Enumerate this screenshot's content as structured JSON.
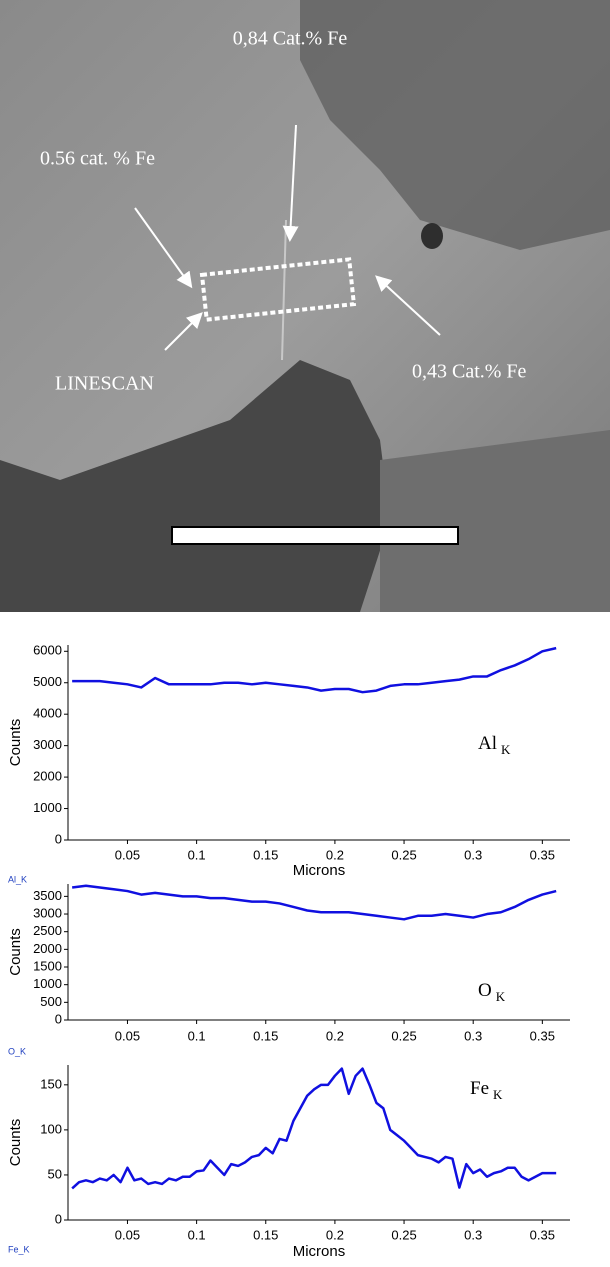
{
  "image": {
    "labels": [
      "0,84 Cat.% Fe",
      "0.56 cat. % Fe",
      "LINESCAN",
      "0,43 Cat.% Fe"
    ]
  },
  "chart_data": [
    {
      "type": "line",
      "y_label": "Counts",
      "x_label": "Microns",
      "annotation": {
        "text": "Al",
        "subscript": "K"
      },
      "source_label": "Al_K",
      "color": "#1010e0",
      "x": [
        0.01,
        0.02,
        0.03,
        0.04,
        0.05,
        0.06,
        0.07,
        0.08,
        0.09,
        0.1,
        0.11,
        0.12,
        0.13,
        0.14,
        0.15,
        0.16,
        0.17,
        0.18,
        0.19,
        0.2,
        0.21,
        0.22,
        0.23,
        0.24,
        0.25,
        0.26,
        0.27,
        0.28,
        0.29,
        0.3,
        0.31,
        0.32,
        0.33,
        0.34,
        0.35,
        0.36
      ],
      "values": [
        5050,
        5050,
        5050,
        5000,
        4950,
        4850,
        5150,
        4950,
        4950,
        4950,
        4950,
        5000,
        5000,
        4950,
        5000,
        4950,
        4900,
        4850,
        4750,
        4800,
        4800,
        4700,
        4750,
        4900,
        4950,
        4950,
        5000,
        5050,
        5100,
        5200,
        5200,
        5400,
        5550,
        5750,
        6000,
        6100
      ],
      "xlim": [
        0.007,
        0.37
      ],
      "ylim": [
        0,
        6200
      ],
      "xticks": [
        0.05,
        0.1,
        0.15,
        0.2,
        0.25,
        0.3,
        0.35
      ],
      "yticks": [
        0,
        1000,
        2000,
        3000,
        4000,
        5000,
        6000
      ]
    },
    {
      "type": "line",
      "y_label": "Counts",
      "annotation": {
        "text": "O",
        "subscript": "K"
      },
      "source_label": "O_K",
      "color": "#1010e0",
      "x": [
        0.01,
        0.02,
        0.03,
        0.04,
        0.05,
        0.06,
        0.07,
        0.08,
        0.09,
        0.1,
        0.11,
        0.12,
        0.13,
        0.14,
        0.15,
        0.16,
        0.17,
        0.18,
        0.19,
        0.2,
        0.21,
        0.22,
        0.23,
        0.24,
        0.25,
        0.26,
        0.27,
        0.28,
        0.29,
        0.3,
        0.31,
        0.32,
        0.33,
        0.34,
        0.35,
        0.36
      ],
      "values": [
        3750,
        3800,
        3750,
        3700,
        3650,
        3550,
        3600,
        3550,
        3500,
        3500,
        3450,
        3450,
        3400,
        3350,
        3350,
        3300,
        3200,
        3100,
        3050,
        3050,
        3050,
        3000,
        2950,
        2900,
        2850,
        2950,
        2950,
        3000,
        2950,
        2900,
        3000,
        3050,
        3200,
        3400,
        3550,
        3650
      ],
      "xlim": [
        0.007,
        0.37
      ],
      "ylim": [
        0,
        3850
      ],
      "xticks": [
        0.05,
        0.1,
        0.15,
        0.2,
        0.25,
        0.3,
        0.35
      ],
      "yticks": [
        0,
        500,
        1000,
        1500,
        2000,
        2500,
        3000,
        3500
      ]
    },
    {
      "type": "line",
      "y_label": "Counts",
      "x_label": "Microns",
      "annotation": {
        "text": "Fe",
        "subscript": "K"
      },
      "source_label": "Fe_K",
      "color": "#1010e0",
      "x": [
        0.01,
        0.015,
        0.02,
        0.025,
        0.03,
        0.035,
        0.04,
        0.045,
        0.05,
        0.055,
        0.06,
        0.065,
        0.07,
        0.075,
        0.08,
        0.085,
        0.09,
        0.095,
        0.1,
        0.105,
        0.11,
        0.115,
        0.12,
        0.125,
        0.13,
        0.135,
        0.14,
        0.145,
        0.15,
        0.155,
        0.16,
        0.165,
        0.17,
        0.175,
        0.18,
        0.185,
        0.19,
        0.195,
        0.2,
        0.205,
        0.21,
        0.215,
        0.22,
        0.225,
        0.23,
        0.235,
        0.24,
        0.245,
        0.25,
        0.255,
        0.26,
        0.265,
        0.27,
        0.275,
        0.28,
        0.285,
        0.29,
        0.295,
        0.3,
        0.305,
        0.31,
        0.315,
        0.32,
        0.325,
        0.33,
        0.335,
        0.34,
        0.345,
        0.35,
        0.355,
        0.36
      ],
      "values": [
        35,
        42,
        44,
        42,
        46,
        44,
        50,
        42,
        58,
        44,
        46,
        40,
        42,
        40,
        46,
        44,
        48,
        48,
        54,
        55,
        66,
        58,
        50,
        62,
        60,
        64,
        70,
        72,
        80,
        74,
        90,
        88,
        110,
        124,
        138,
        145,
        150,
        150,
        160,
        168,
        140,
        160,
        168,
        150,
        130,
        124,
        100,
        94,
        88,
        80,
        72,
        70,
        68,
        64,
        70,
        68,
        36,
        62,
        52,
        56,
        48,
        52,
        54,
        58,
        58,
        48,
        44,
        48,
        52,
        52,
        52
      ],
      "xlim": [
        0.007,
        0.37
      ],
      "ylim": [
        0,
        172
      ],
      "xticks": [
        0.05,
        0.1,
        0.15,
        0.2,
        0.25,
        0.3,
        0.35
      ],
      "yticks": [
        0,
        50,
        100,
        150
      ]
    }
  ]
}
